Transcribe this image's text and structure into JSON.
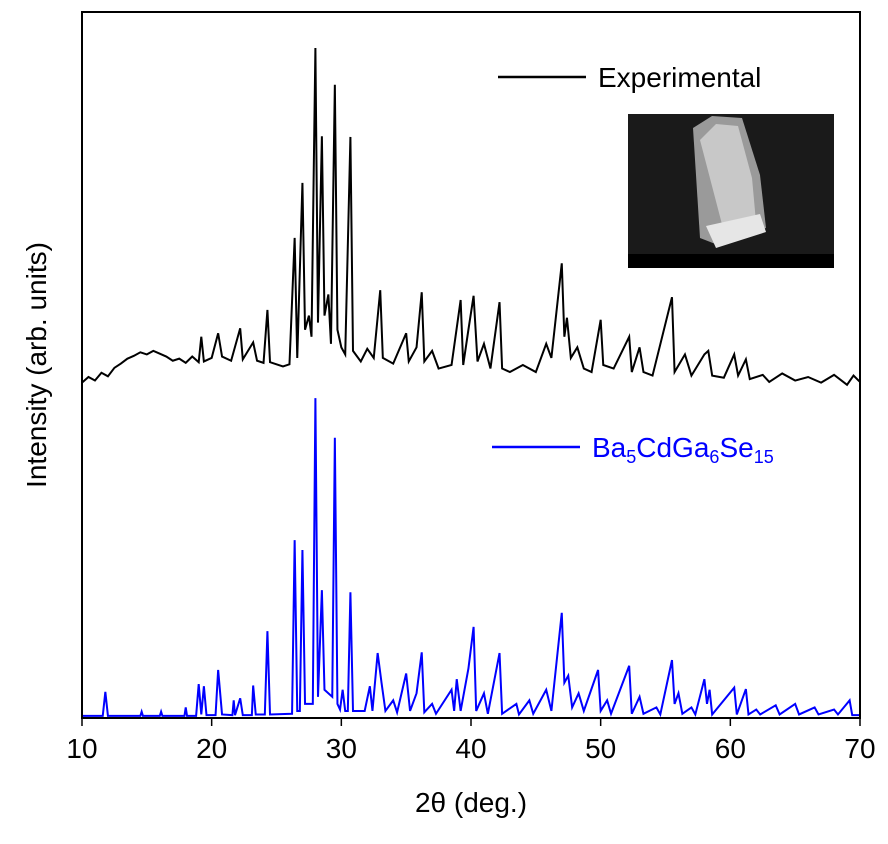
{
  "chart_data": {
    "type": "line",
    "x_label": "2θ (deg.)",
    "y_label": "Intensity (arb. units)",
    "xlim": [
      10,
      70
    ],
    "xticks": [
      10,
      20,
      30,
      40,
      50,
      60,
      70
    ],
    "ylim": [
      0,
      100
    ],
    "series": [
      {
        "name": "Experimental",
        "color": "#000000",
        "x": [
          10,
          10.5,
          11,
          11.5,
          12,
          12.5,
          13,
          13.5,
          14,
          14.5,
          15,
          15.5,
          16,
          16.5,
          17,
          17.5,
          18,
          18.5,
          19,
          19.2,
          19.4,
          20,
          20.5,
          20.8,
          21.5,
          22.2,
          22.4,
          23.2,
          23.5,
          24,
          24.3,
          24.5,
          25,
          25.5,
          26,
          26.4,
          26.6,
          27,
          27.2,
          27.5,
          27.7,
          28,
          28.2,
          28.5,
          28.7,
          29,
          29.2,
          29.5,
          29.7,
          30,
          30.3,
          30.7,
          30.9,
          31.5,
          32,
          32.5,
          33,
          33.2,
          34,
          35,
          35.2,
          35.8,
          36.2,
          36.4,
          37,
          37.5,
          38.5,
          39.2,
          39.4,
          39.8,
          40.2,
          40.5,
          41,
          41.5,
          42.2,
          42.4,
          43,
          44,
          45,
          45.8,
          46.2,
          47,
          47.2,
          47.4,
          47.7,
          48.2,
          48.7,
          49.3,
          50,
          50.2,
          51,
          52.2,
          52.4,
          53,
          53.3,
          54,
          55.5,
          55.7,
          56.5,
          57,
          58,
          58.3,
          58.6,
          59.5,
          60.3,
          60.6,
          61.2,
          61.5,
          62.5,
          63,
          64,
          65,
          66,
          67,
          68,
          69,
          69.5,
          70
        ],
        "values": [
          47.5,
          48.3,
          47.8,
          48.9,
          48.4,
          49.6,
          50.2,
          50.9,
          51.3,
          51.8,
          51.5,
          52.0,
          51.6,
          51.2,
          50.6,
          50.9,
          50.3,
          51.2,
          50.4,
          54.0,
          50.5,
          51.0,
          54.5,
          51.2,
          50.6,
          55.2,
          50.8,
          53.2,
          50.6,
          50.3,
          57.8,
          50.4,
          50.1,
          49.8,
          50.1,
          68.0,
          51.0,
          75.8,
          55.0,
          57.0,
          54.0,
          94.9,
          56.0,
          82.4,
          57.0,
          60.0,
          53.0,
          89.7,
          55.0,
          52.5,
          51.5,
          82.3,
          52.0,
          50.5,
          52.3,
          51.0,
          60.6,
          51.0,
          50.2,
          54.5,
          50.5,
          52.5,
          60.3,
          50.5,
          52.0,
          49.5,
          50.0,
          59.2,
          50.0,
          55.0,
          59.8,
          50.5,
          53.0,
          49.5,
          58.9,
          49.5,
          49.0,
          50.0,
          49.0,
          53.0,
          51.0,
          64.4,
          54.0,
          56.7,
          51.0,
          52.5,
          49.5,
          49.0,
          56.4,
          50.0,
          49.5,
          54.0,
          49.0,
          52.5,
          49.0,
          48.5,
          59.6,
          49.0,
          51.5,
          48.5,
          51.5,
          52.0,
          48.5,
          48.2,
          51.5,
          48.5,
          50.8,
          48.0,
          48.6,
          47.6,
          48.8,
          47.8,
          48.3,
          47.5,
          48.6,
          47.2,
          48.5,
          47.6
        ]
      },
      {
        "name": "Ba5CdGa6Se15",
        "color": "#0000ff",
        "x": [
          10,
          11.6,
          11.8,
          12,
          14.5,
          14.6,
          14.7,
          16,
          16.1,
          16.2,
          17.9,
          18,
          18.1,
          18.8,
          19,
          19.2,
          19.4,
          19.6,
          20.3,
          20.5,
          20.8,
          21.6,
          21.7,
          21.8,
          22.2,
          22.4,
          23.1,
          23.2,
          23.4,
          24.1,
          24.3,
          24.5,
          26.2,
          26.4,
          26.6,
          26.8,
          27,
          27.2,
          27.8,
          28,
          28.2,
          28.5,
          28.7,
          29.3,
          29.5,
          29.7,
          29.9,
          30.1,
          30.3,
          30.5,
          30.7,
          30.9,
          31.8,
          32.2,
          32.4,
          32.8,
          33.1,
          33.4,
          34,
          34.3,
          35,
          35.3,
          35.8,
          36.2,
          36.4,
          37,
          37.3,
          38.5,
          38.7,
          38.9,
          39.2,
          39.8,
          40.2,
          40.4,
          41,
          41.3,
          42.2,
          42.4,
          43.5,
          43.7,
          44.5,
          44.8,
          45.8,
          46.2,
          47,
          47.2,
          47.5,
          47.8,
          48.3,
          48.7,
          49.8,
          50,
          50.5,
          50.8,
          52.2,
          52.4,
          53,
          53.3,
          54.3,
          54.6,
          55.5,
          55.7,
          56,
          56.3,
          57,
          57.3,
          58,
          58.2,
          58.4,
          58.6,
          60.3,
          60.5,
          61.2,
          61.4,
          62,
          62.3,
          63.5,
          63.8,
          65,
          65.3,
          66.5,
          66.8,
          68,
          68.3,
          69.2,
          69.4,
          70
        ],
        "values": [
          0.3,
          0.3,
          3.7,
          0.3,
          0.3,
          0.9,
          0.3,
          0.3,
          0.9,
          0.3,
          0.3,
          1.5,
          0.3,
          0.3,
          4.8,
          0.5,
          4.5,
          0.4,
          0.4,
          6.8,
          0.5,
          0.4,
          2.5,
          0.4,
          2.8,
          0.4,
          0.4,
          4.6,
          0.5,
          0.5,
          12.3,
          0.5,
          0.6,
          25.2,
          1.0,
          1.0,
          23.8,
          2.0,
          2.0,
          45.3,
          3.0,
          18.1,
          4.0,
          3.0,
          39.7,
          2.0,
          1.2,
          4.0,
          1.0,
          1.0,
          17.8,
          1.0,
          1.0,
          4.5,
          1.0,
          9.2,
          5.0,
          1.0,
          2.5,
          0.8,
          6.3,
          1.0,
          3.5,
          9.3,
          0.8,
          2.0,
          0.6,
          4.0,
          1.0,
          5.5,
          1.0,
          7.0,
          12.9,
          1.0,
          3.5,
          0.6,
          9.2,
          0.6,
          2.0,
          0.5,
          2.5,
          0.6,
          4.0,
          1.0,
          14.9,
          5.0,
          6.0,
          1.5,
          3.5,
          1.0,
          6.8,
          1.0,
          2.5,
          0.6,
          7.4,
          0.6,
          3.0,
          0.6,
          1.5,
          0.5,
          8.2,
          2.0,
          3.5,
          0.6,
          1.5,
          0.5,
          5.5,
          2.0,
          4.0,
          0.5,
          4.3,
          0.5,
          4.1,
          0.5,
          1.2,
          0.5,
          1.8,
          0.5,
          2.0,
          0.5,
          1.5,
          0.5,
          1.2,
          0.5,
          2.5,
          0.4,
          0.4
        ]
      }
    ]
  }
}
